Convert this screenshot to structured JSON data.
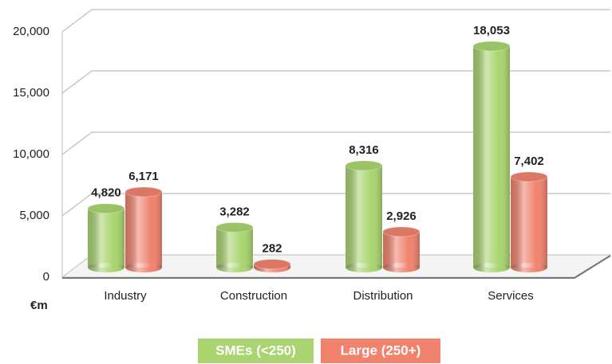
{
  "chart_data": {
    "type": "bar",
    "ylabel": "€m",
    "categories": [
      "Industry",
      "Construction",
      "Distribution",
      "Services"
    ],
    "series": [
      {
        "name": "SMEs (<250)",
        "color": "#a9d46f",
        "values": [
          4820,
          3282,
          8316,
          18053
        ],
        "value_labels": [
          "4,820",
          "3,282",
          "8,316",
          "18,053"
        ]
      },
      {
        "name": "Large (250+)",
        "color": "#f0826e",
        "values": [
          6171,
          282,
          2926,
          7402
        ],
        "value_labels": [
          "6,171",
          "282",
          "2,926",
          "7,402"
        ]
      }
    ],
    "ylim": [
      0,
      20000
    ],
    "yticks": [
      0,
      {
        "value": 5000,
        "label": "5,000"
      },
      {
        "value": 10000,
        "label": "10,000"
      },
      {
        "value": 15000,
        "label": "15,000"
      },
      {
        "value": 20000,
        "label": "20,000"
      }
    ],
    "grid": true
  }
}
